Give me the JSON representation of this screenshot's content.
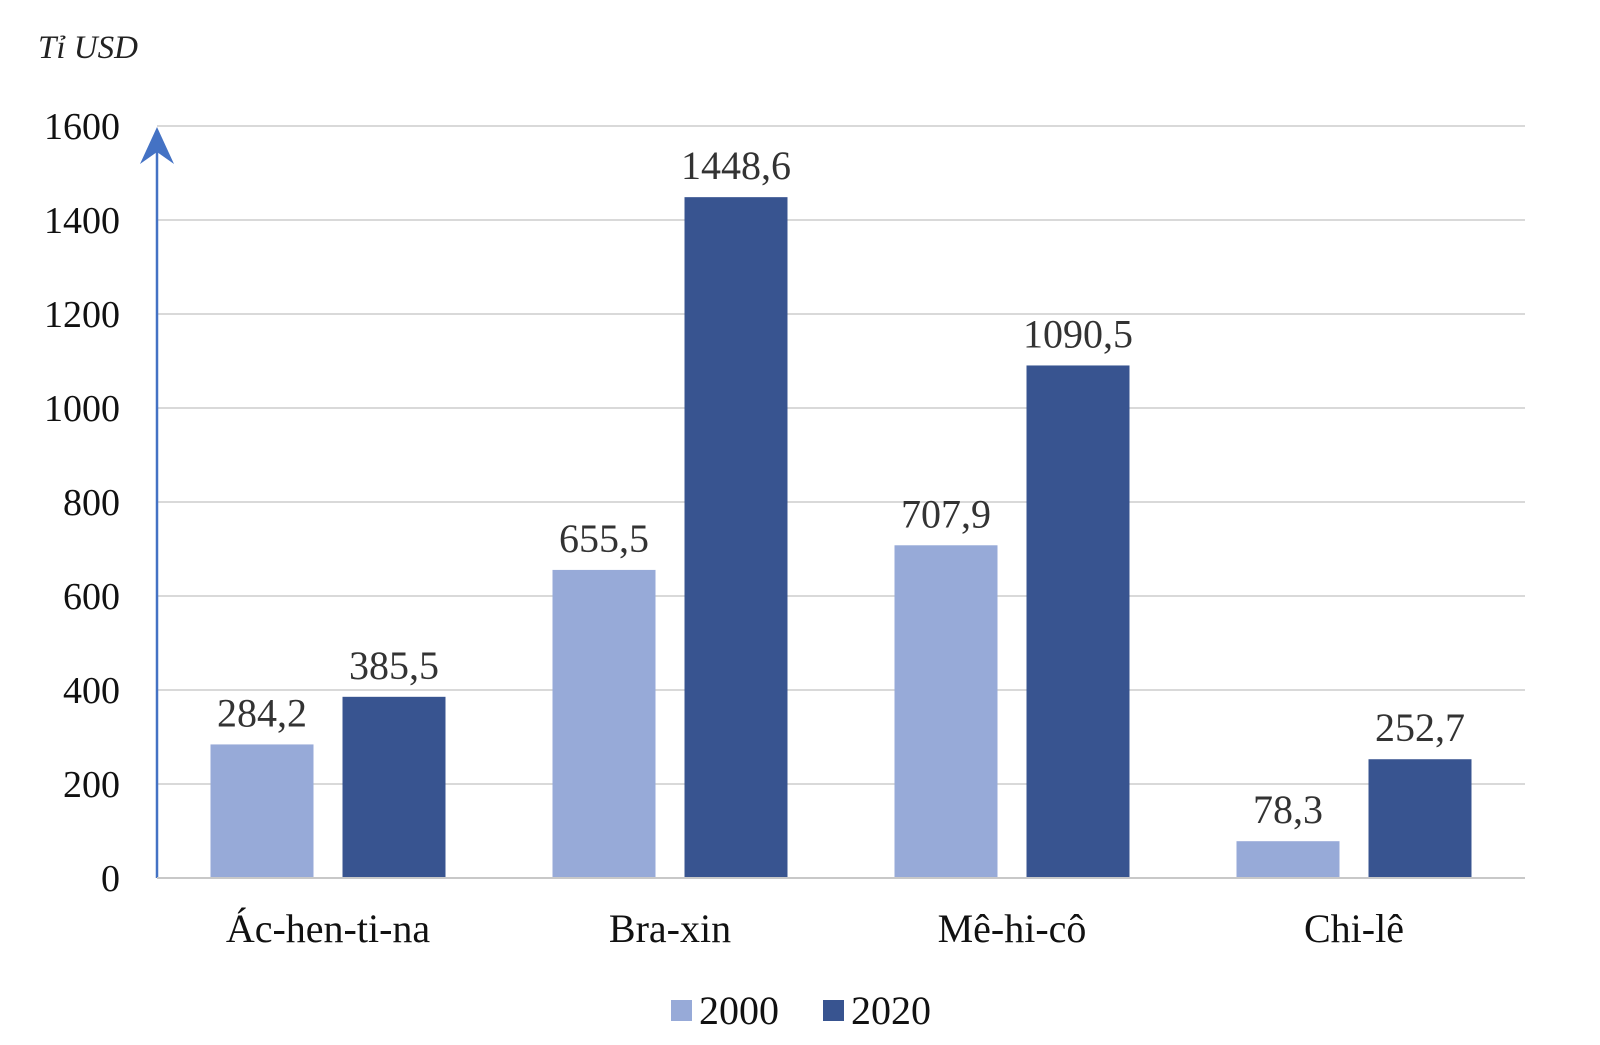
{
  "chart_data": {
    "type": "bar",
    "unit_label": "Tỉ USD",
    "categories": [
      "Ác-hen-ti-na",
      "Bra-xin",
      "Mê-hi-cô",
      "Chi-lê"
    ],
    "series": [
      {
        "name": "2000",
        "color": "#97aad8",
        "values": [
          284.2,
          655.5,
          707.9,
          78.3
        ],
        "labels": [
          "284,2",
          "655,5",
          "707,9",
          "78,3"
        ]
      },
      {
        "name": "2020",
        "color": "#385490",
        "values": [
          385.5,
          1448.6,
          1090.5,
          252.7
        ],
        "labels": [
          "385,5",
          "1448,6",
          "1090,5",
          "252,7"
        ]
      }
    ],
    "ylim": [
      0,
      1600
    ],
    "yticks": [
      0,
      200,
      400,
      600,
      800,
      1000,
      1200,
      1400,
      1600
    ],
    "axis_color": "#4472c4",
    "grid": true,
    "legend_position": "bottom"
  }
}
